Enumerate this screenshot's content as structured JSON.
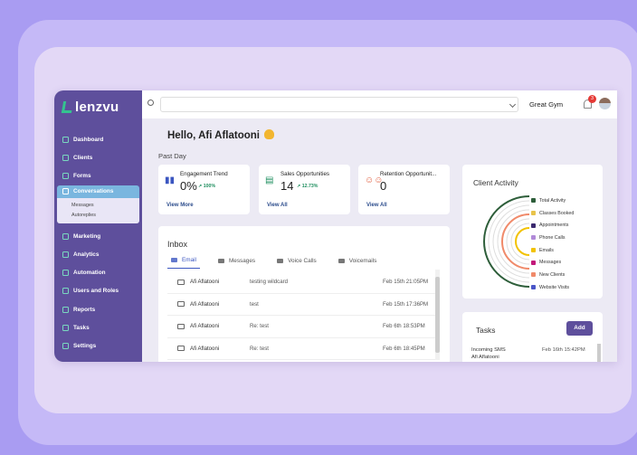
{
  "brand": {
    "logo_text": "lenzvu"
  },
  "sidebar": {
    "items": [
      {
        "label": "Dashboard",
        "icon": "grid-icon"
      },
      {
        "label": "Clients",
        "icon": "users-icon"
      },
      {
        "label": "Forms",
        "icon": "layers-icon"
      },
      {
        "label": "Conversations",
        "icon": "chat-icon",
        "active": true
      },
      {
        "label": "Marketing",
        "icon": "megaphone-icon"
      },
      {
        "label": "Analytics",
        "icon": "chart-icon"
      },
      {
        "label": "Automation",
        "icon": "robot-icon"
      },
      {
        "label": "Users and Roles",
        "icon": "team-icon"
      },
      {
        "label": "Reports",
        "icon": "report-icon"
      },
      {
        "label": "Tasks",
        "icon": "task-icon"
      },
      {
        "label": "Settings",
        "icon": "gear-icon"
      }
    ],
    "subitems": [
      "Messages",
      "Autoreplies"
    ]
  },
  "topbar": {
    "gym": "Great Gym",
    "notification_count": "3"
  },
  "greeting": "Hello, Afi Aflatooni",
  "past_day_label": "Past Day",
  "stats": [
    {
      "title": "Engagement Trend",
      "value": "0%",
      "change": "↗ 100%",
      "link": "View More"
    },
    {
      "title": "Sales Opportunities",
      "value": "14",
      "change": "↗ 12.73%",
      "link": "View All"
    },
    {
      "title": "Retention Opportunit...",
      "value": "0",
      "change": "",
      "link": "View All"
    }
  ],
  "inbox": {
    "title": "Inbox",
    "tabs": [
      "Email",
      "Messages",
      "Voice Calls",
      "Voicemails"
    ],
    "rows": [
      {
        "from": "Afi Aflatooni",
        "subject": "testing wildcard",
        "date": "Feb 15th 21:05PM"
      },
      {
        "from": "Afi Aflatooni",
        "subject": "test",
        "date": "Feb 15th 17:36PM"
      },
      {
        "from": "Afi Aflatooni",
        "subject": "Re: test",
        "date": "Feb 6th 18:53PM"
      },
      {
        "from": "Afi Aflatooni",
        "subject": "Re: test",
        "date": "Feb 6th 18:45PM"
      }
    ]
  },
  "client_activity": {
    "title": "Client Activity",
    "legend": [
      {
        "label": "Total Activity",
        "color": "#2e5e3a"
      },
      {
        "label": "Classes Booked",
        "color": "#e8c34a"
      },
      {
        "label": "Appointments",
        "color": "#3b2a6e"
      },
      {
        "label": "Phone Calls",
        "color": "#b18ad8"
      },
      {
        "label": "Emails",
        "color": "#f2c200"
      },
      {
        "label": "Messages",
        "color": "#c2187a"
      },
      {
        "label": "New Clients",
        "color": "#f08a6a"
      },
      {
        "label": "Website Visits",
        "color": "#4a56c8"
      }
    ]
  },
  "tasks": {
    "title": "Tasks",
    "add_label": "Add",
    "item_title": "Incoming SMS",
    "item_sub": "Afi Aflatooni",
    "item_date": "Feb 16th 15:42PM"
  }
}
